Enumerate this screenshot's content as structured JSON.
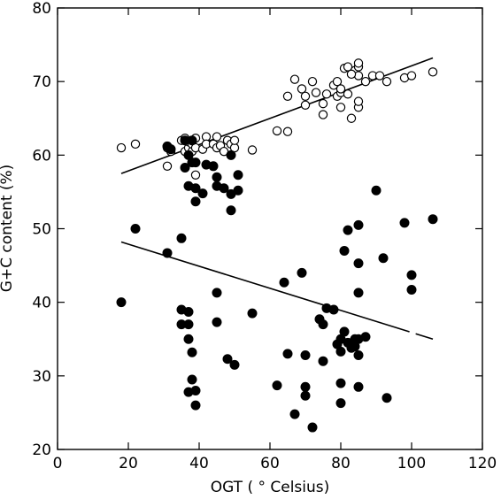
{
  "chart_data": {
    "type": "scatter",
    "xlabel": "OGT ( ° Celsius)",
    "ylabel": "G+C content (%)",
    "xlim": [
      0,
      120
    ],
    "ylim": [
      20,
      80
    ],
    "x_ticks": [
      "0",
      "20",
      "40",
      "60",
      "80",
      "100",
      "120"
    ],
    "y_ticks": [
      "20",
      "30",
      "40",
      "50",
      "60",
      "70",
      "80"
    ],
    "grid": false,
    "series": [
      {
        "marker": "open-circle",
        "points": [
          [
            18,
            61.0
          ],
          [
            22,
            61.5
          ],
          [
            31,
            58.5
          ],
          [
            31,
            61.0
          ],
          [
            32,
            60.5
          ],
          [
            35,
            62.0
          ],
          [
            36,
            60.5
          ],
          [
            36,
            62.3
          ],
          [
            37,
            61.0
          ],
          [
            37,
            61.8
          ],
          [
            38,
            60.5
          ],
          [
            38,
            61.5
          ],
          [
            39,
            57.3
          ],
          [
            39,
            62.3
          ],
          [
            39,
            61.0
          ],
          [
            41,
            60.8
          ],
          [
            42,
            62.5
          ],
          [
            42,
            61.5
          ],
          [
            44,
            61.5
          ],
          [
            45,
            61.0
          ],
          [
            45,
            62.5
          ],
          [
            46,
            61.3
          ],
          [
            47,
            60.5
          ],
          [
            48,
            62.0
          ],
          [
            49,
            61.5
          ],
          [
            50,
            61.0
          ],
          [
            50,
            62.0
          ],
          [
            55,
            60.7
          ],
          [
            62,
            63.3
          ],
          [
            65,
            63.2
          ],
          [
            65,
            68.0
          ],
          [
            67,
            70.3
          ],
          [
            70,
            66.8
          ],
          [
            70,
            68.0
          ],
          [
            72,
            70.0
          ],
          [
            73,
            68.5
          ],
          [
            75,
            65.5
          ],
          [
            75,
            67.0
          ],
          [
            76,
            68.3
          ],
          [
            78,
            69.5
          ],
          [
            79,
            68.0
          ],
          [
            79,
            70.0
          ],
          [
            80,
            66.5
          ],
          [
            80,
            68.5
          ],
          [
            80,
            69.0
          ],
          [
            81,
            71.8
          ],
          [
            82,
            68.3
          ],
          [
            82,
            72.0
          ],
          [
            83,
            65.0
          ],
          [
            84,
            71.5
          ],
          [
            85,
            66.5
          ],
          [
            85,
            67.3
          ],
          [
            85,
            70.8
          ],
          [
            85,
            72.0
          ],
          [
            85,
            72.5
          ],
          [
            87,
            70.0
          ],
          [
            89,
            70.8
          ],
          [
            91,
            70.8
          ],
          [
            93,
            70.0
          ],
          [
            98,
            70.5
          ],
          [
            100,
            70.8
          ],
          [
            106,
            71.3
          ],
          [
            83,
            71.0
          ],
          [
            69,
            69.0
          ]
        ]
      },
      {
        "marker": "filled-circle",
        "points": [
          [
            18,
            40.0
          ],
          [
            22,
            50.0
          ],
          [
            31,
            61.2
          ],
          [
            31,
            46.7
          ],
          [
            32,
            60.8
          ],
          [
            35,
            48.7
          ],
          [
            35,
            39.0
          ],
          [
            35,
            37.0
          ],
          [
            36,
            58.3
          ],
          [
            36,
            62.0
          ],
          [
            37,
            60.0
          ],
          [
            37,
            55.8
          ],
          [
            37,
            38.7
          ],
          [
            37,
            37.0
          ],
          [
            37,
            35.0
          ],
          [
            37,
            27.8
          ],
          [
            38,
            62.0
          ],
          [
            38,
            59.0
          ],
          [
            38,
            33.2
          ],
          [
            38,
            29.5
          ],
          [
            39,
            55.5
          ],
          [
            39,
            53.7
          ],
          [
            39,
            59.0
          ],
          [
            39,
            28.0
          ],
          [
            39,
            26.0
          ],
          [
            41,
            54.8
          ],
          [
            42,
            58.7
          ],
          [
            44,
            58.5
          ],
          [
            45,
            57.0
          ],
          [
            45,
            55.8
          ],
          [
            45,
            41.3
          ],
          [
            45,
            37.3
          ],
          [
            47,
            55.5
          ],
          [
            48,
            32.3
          ],
          [
            49,
            54.7
          ],
          [
            49,
            52.5
          ],
          [
            49,
            60.0
          ],
          [
            50,
            31.5
          ],
          [
            51,
            57.3
          ],
          [
            51,
            55.2
          ],
          [
            55,
            38.5
          ],
          [
            62,
            28.7
          ],
          [
            64,
            42.7
          ],
          [
            65,
            33.0
          ],
          [
            67,
            24.8
          ],
          [
            69,
            44.0
          ],
          [
            70,
            32.8
          ],
          [
            70,
            28.5
          ],
          [
            70,
            27.3
          ],
          [
            72,
            23.0
          ],
          [
            74,
            37.7
          ],
          [
            75,
            37.0
          ],
          [
            75,
            32.0
          ],
          [
            76,
            39.2
          ],
          [
            78,
            39.0
          ],
          [
            79,
            34.3
          ],
          [
            80,
            35.0
          ],
          [
            80,
            33.3
          ],
          [
            80,
            29.0
          ],
          [
            80,
            26.3
          ],
          [
            81,
            47.0
          ],
          [
            81,
            36.0
          ],
          [
            82,
            49.8
          ],
          [
            82,
            34.5
          ],
          [
            83,
            33.8
          ],
          [
            84,
            35.0
          ],
          [
            84,
            34.0
          ],
          [
            85,
            50.5
          ],
          [
            85,
            45.3
          ],
          [
            85,
            41.3
          ],
          [
            85,
            35.0
          ],
          [
            85,
            32.8
          ],
          [
            85,
            28.5
          ],
          [
            87,
            35.3
          ],
          [
            90,
            55.2
          ],
          [
            92,
            46.0
          ],
          [
            93,
            27.0
          ],
          [
            98,
            50.8
          ],
          [
            100,
            43.7
          ],
          [
            100,
            41.7
          ],
          [
            106,
            51.3
          ]
        ]
      }
    ],
    "trend_lines": [
      {
        "x": [
          18,
          106
        ],
        "y": [
          57.5,
          73.2
        ],
        "style": "solid"
      },
      {
        "x": [
          18,
          106
        ],
        "y": [
          48.2,
          35.0
        ],
        "style": "solid-with-break"
      }
    ]
  }
}
